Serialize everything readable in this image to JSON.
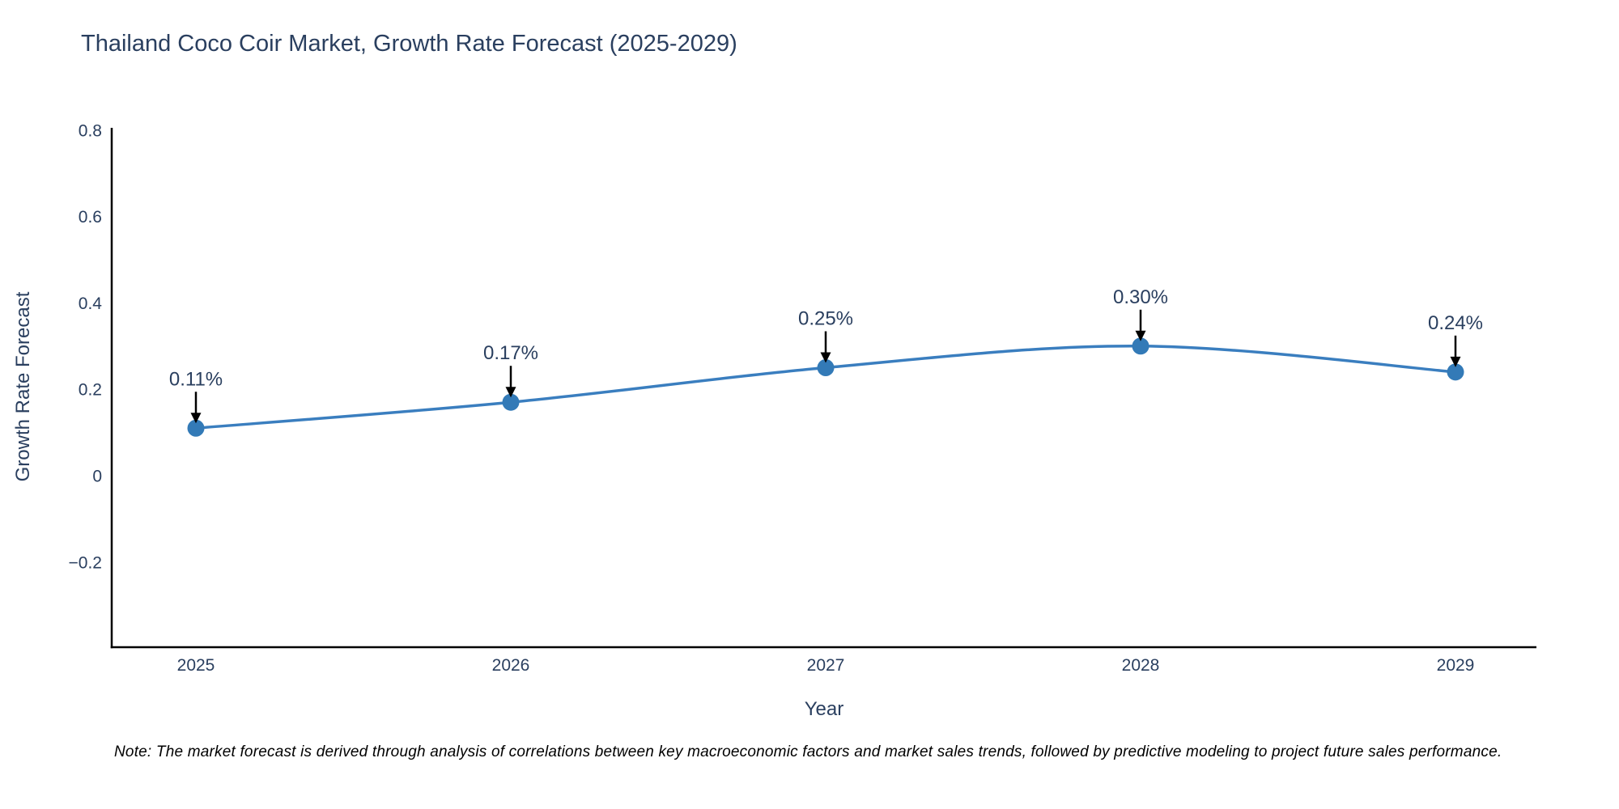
{
  "title": "Thailand Coco Coir Market, Growth Rate Forecast (2025-2029)",
  "note": "Note: The market forecast is derived through analysis of correlations between key macroeconomic factors and market sales trends, followed by predictive modeling to project future sales performance.",
  "colors": {
    "line": "#3a7ebf",
    "marker": "#337ab7",
    "text": "#2a3f5f",
    "annotation_text": "#2a3f5f",
    "arrow": "#000000",
    "axis_line": "#000000",
    "note_text": "#000000",
    "background": "#ffffff"
  },
  "chart_data": {
    "type": "line",
    "title": "Thailand Coco Coir Market, Growth Rate Forecast (2025-2029)",
    "x": [
      "2025",
      "2026",
      "2027",
      "2028",
      "2029"
    ],
    "y": [
      0.11,
      0.17,
      0.25,
      0.3,
      0.24
    ],
    "point_labels": [
      "0.11%",
      "0.17%",
      "0.25%",
      "0.30%",
      "0.24%"
    ],
    "xlabel": "Year",
    "ylabel": "Growth Rate Forecast",
    "ytick_values": [
      0.8,
      0.6,
      0.4,
      0.2,
      0,
      -0.2
    ],
    "ytick_labels": [
      "0.8",
      "0.6",
      "0.4",
      "0.2",
      "0",
      "−0.2"
    ],
    "ylim": [
      -0.4,
      0.8
    ],
    "grid": false,
    "legend": false,
    "line_shape": "spline",
    "marker_style": "circle",
    "annotation_arrows": true
  }
}
